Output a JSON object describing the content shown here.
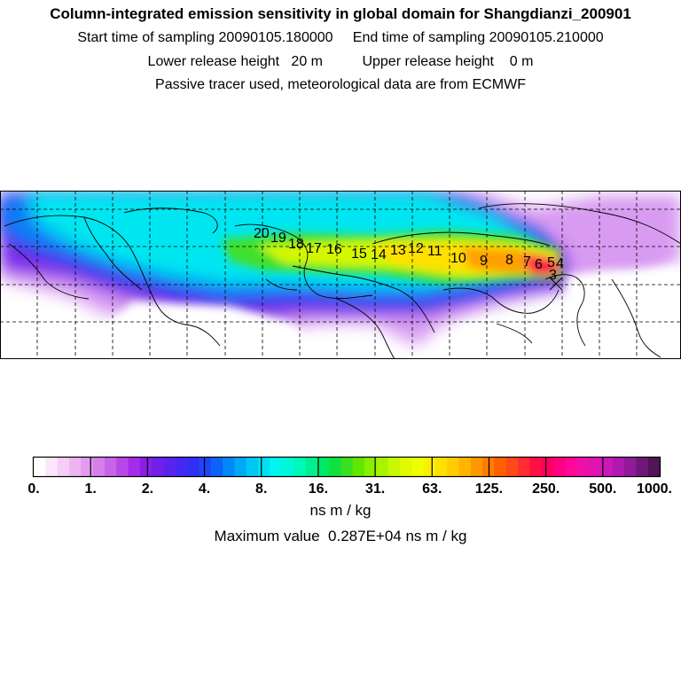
{
  "header": {
    "title": "Column-integrated emission sensitivity in global domain for Shangdianzi_200901",
    "line2": "Start time of sampling 20090105.180000     End time of sampling 20090105.210000",
    "line3": "Lower release height   20 m          Upper release height    0 m",
    "line4": "Passive tracer used, meteorological data are from ECMWF"
  },
  "map": {
    "trajectory_labels": [
      "20",
      "19",
      "18",
      "17",
      "16",
      "15",
      "14",
      "13",
      "12",
      "11",
      "10",
      "9",
      "8",
      "7",
      "6",
      "5",
      "4",
      "3"
    ]
  },
  "colorbar": {
    "tick_labels": [
      "0.",
      "1.",
      "2.",
      "4.",
      "8.",
      "16.",
      "31.",
      "63.",
      "125.",
      "250.",
      "500.",
      "1000."
    ],
    "colors": [
      "#ffffff",
      "#fbe6fb",
      "#f5cdf7",
      "#eeb4f3",
      "#e49cef",
      "#d680ec",
      "#c864ea",
      "#b847e8",
      "#a52de8",
      "#8a1ee8",
      "#7020e8",
      "#5a23ee",
      "#4528f2",
      "#2f2ff6",
      "#1f45f8",
      "#0b63f8",
      "#0088f8",
      "#00a8f6",
      "#00c8f4",
      "#00e0f0",
      "#00f6ee",
      "#00f8d8",
      "#00f8b8",
      "#00f090",
      "#00e868",
      "#10e040",
      "#38e020",
      "#60e800",
      "#88f000",
      "#a8f400",
      "#c8f800",
      "#e0fa00",
      "#f0ff00",
      "#f8f000",
      "#ffe000",
      "#ffcc00",
      "#ffb400",
      "#ff9800",
      "#ff7c00",
      "#ff6000",
      "#ff4818",
      "#ff2c30",
      "#ff1040",
      "#ff0060",
      "#ff0080",
      "#ff0898",
      "#f010a8",
      "#e014b0",
      "#cc18b8",
      "#b01ab0",
      "#901a98",
      "#701878",
      "#501458"
    ],
    "unit": "ns m / kg",
    "max_value_text": "Maximum value  0.287E+04 ns m / kg"
  }
}
